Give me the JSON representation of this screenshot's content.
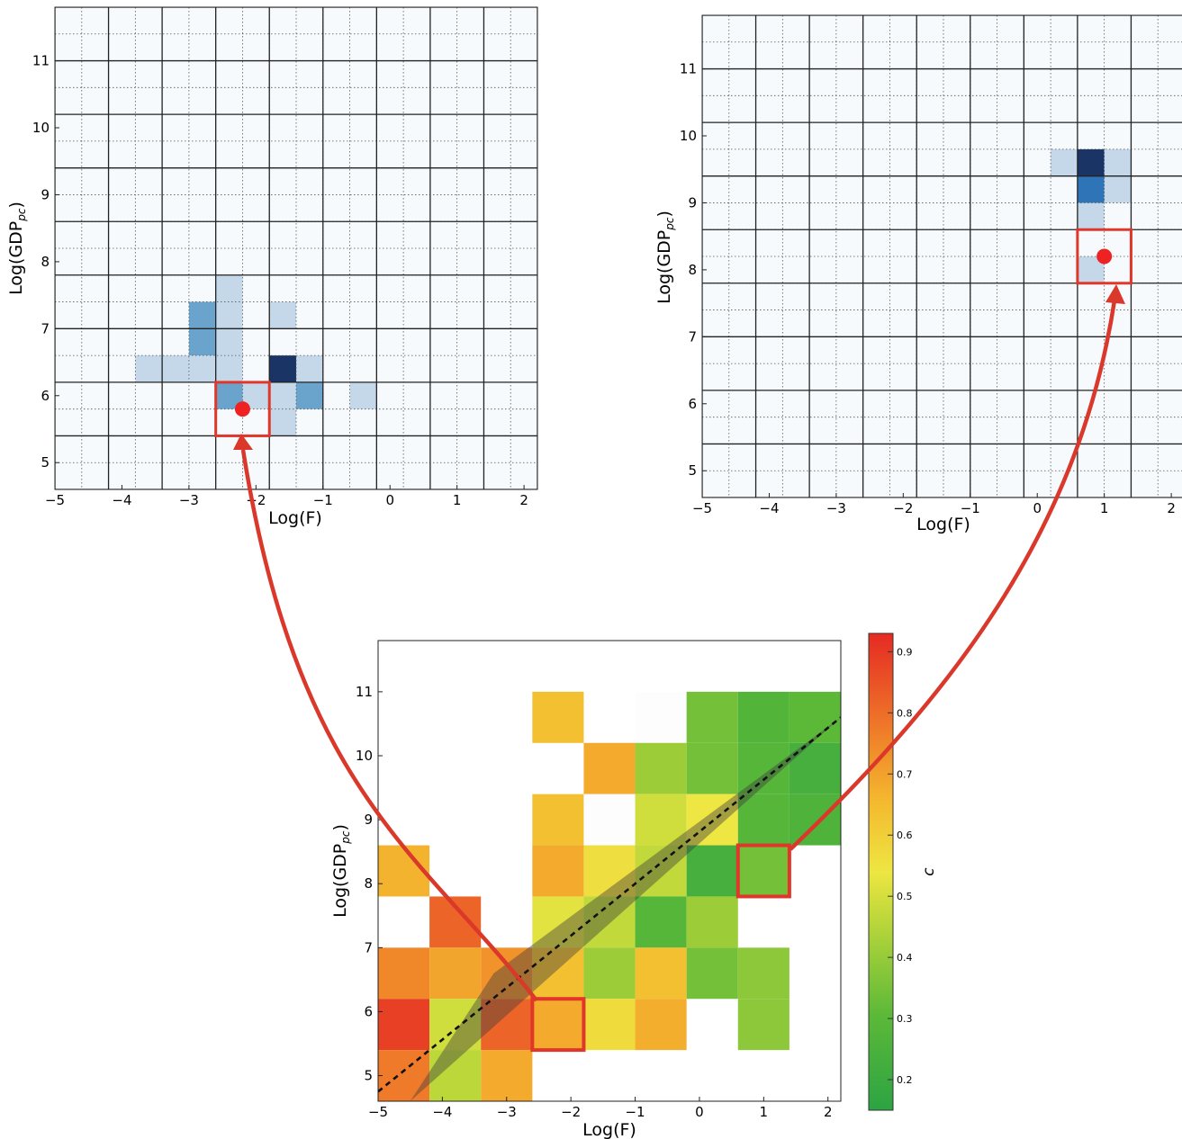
{
  "chart_data": [
    {
      "id": "left_panel",
      "type": "heatmap",
      "colormap": "blues",
      "xlabel": "Log(F)",
      "ylabel": "Log(GDP",
      "ylabel_sub": "pc",
      "ylabel_close": ")",
      "xlim": [
        -5,
        2.2
      ],
      "ylim": [
        4.6,
        11.8
      ],
      "xticks": [
        "−5",
        "−4",
        "−3",
        "−2",
        "−1",
        "0",
        "1",
        "2"
      ],
      "xtick_values": [
        -5,
        -4,
        -3,
        -2,
        -1,
        0,
        1,
        2
      ],
      "yticks": [
        "5",
        "6",
        "7",
        "8",
        "9",
        "10",
        "11"
      ],
      "ytick_values": [
        5,
        6,
        7,
        8,
        9,
        10,
        11
      ],
      "coarse_grid_x": [
        -5,
        -4.2,
        -3.4,
        -2.6,
        -1.8,
        -1.0,
        -0.2,
        0.6,
        1.4,
        2.2
      ],
      "coarse_grid_y": [
        4.6,
        5.4,
        6.2,
        7.0,
        7.8,
        8.6,
        9.4,
        10.2,
        11.0,
        11.8
      ],
      "fine_step": 0.4,
      "cells": [
        {
          "x": [
            -2.6,
            -2.2
          ],
          "y": [
            7.4,
            7.8
          ],
          "level": 0.25
        },
        {
          "x": [
            -2.6,
            -2.2
          ],
          "y": [
            7.0,
            7.4
          ],
          "level": 0.25
        },
        {
          "x": [
            -3.0,
            -2.6
          ],
          "y": [
            7.0,
            7.4
          ],
          "level": 0.55
        },
        {
          "x": [
            -1.8,
            -1.4
          ],
          "y": [
            7.0,
            7.4
          ],
          "level": 0.25
        },
        {
          "x": [
            -3.0,
            -2.6
          ],
          "y": [
            6.6,
            7.0
          ],
          "level": 0.55
        },
        {
          "x": [
            -2.6,
            -2.2
          ],
          "y": [
            6.6,
            7.0
          ],
          "level": 0.25
        },
        {
          "x": [
            -3.8,
            -3.4
          ],
          "y": [
            6.2,
            6.6
          ],
          "level": 0.25
        },
        {
          "x": [
            -3.4,
            -3.0
          ],
          "y": [
            6.2,
            6.6
          ],
          "level": 0.25
        },
        {
          "x": [
            -3.0,
            -2.6
          ],
          "y": [
            6.2,
            6.6
          ],
          "level": 0.25
        },
        {
          "x": [
            -2.6,
            -2.2
          ],
          "y": [
            6.2,
            6.6
          ],
          "level": 0.25
        },
        {
          "x": [
            -1.8,
            -1.4
          ],
          "y": [
            6.2,
            6.6
          ],
          "level": 1.0
        },
        {
          "x": [
            -1.4,
            -1.0
          ],
          "y": [
            6.2,
            6.6
          ],
          "level": 0.25
        },
        {
          "x": [
            -2.6,
            -2.2
          ],
          "y": [
            5.8,
            6.2
          ],
          "level": 0.55
        },
        {
          "x": [
            -2.2,
            -1.8
          ],
          "y": [
            5.8,
            6.2
          ],
          "level": 0.25
        },
        {
          "x": [
            -1.8,
            -1.4
          ],
          "y": [
            5.8,
            6.2
          ],
          "level": 0.25
        },
        {
          "x": [
            -1.4,
            -1.0
          ],
          "y": [
            5.8,
            6.2
          ],
          "level": 0.55
        },
        {
          "x": [
            -0.6,
            -0.2
          ],
          "y": [
            5.8,
            6.2
          ],
          "level": 0.25
        },
        {
          "x": [
            -1.8,
            -1.4
          ],
          "y": [
            5.4,
            5.8
          ],
          "level": 0.25
        }
      ],
      "highlight_box": {
        "x": [
          -2.6,
          -1.8
        ],
        "y": [
          5.4,
          6.2
        ]
      },
      "marker": {
        "x": -2.2,
        "y": 5.8
      }
    },
    {
      "id": "right_panel",
      "type": "heatmap",
      "colormap": "blues",
      "xlabel": "Log(F)",
      "ylabel": "Log(GDP",
      "ylabel_sub": "pc",
      "ylabel_close": ")",
      "xlim": [
        -5,
        2.2
      ],
      "ylim": [
        4.6,
        11.8
      ],
      "xticks": [
        "−5",
        "−4",
        "−3",
        "−2",
        "−1",
        "0",
        "1",
        "2"
      ],
      "xtick_values": [
        -5,
        -4,
        -3,
        -2,
        -1,
        0,
        1,
        2
      ],
      "yticks": [
        "5",
        "6",
        "7",
        "8",
        "9",
        "10",
        "11"
      ],
      "ytick_values": [
        5,
        6,
        7,
        8,
        9,
        10,
        11
      ],
      "coarse_grid_x": [
        -5,
        -4.2,
        -3.4,
        -2.6,
        -1.8,
        -1.0,
        -0.2,
        0.6,
        1.4,
        2.2
      ],
      "coarse_grid_y": [
        4.6,
        5.4,
        6.2,
        7.0,
        7.8,
        8.6,
        9.4,
        10.2,
        11.0,
        11.8
      ],
      "fine_step": 0.4,
      "cells": [
        {
          "x": [
            0.2,
            0.6
          ],
          "y": [
            9.4,
            9.8
          ],
          "level": 0.15
        },
        {
          "x": [
            0.6,
            1.0
          ],
          "y": [
            9.4,
            9.8
          ],
          "level": 1.0
        },
        {
          "x": [
            1.0,
            1.4
          ],
          "y": [
            9.4,
            9.8
          ],
          "level": 0.15
        },
        {
          "x": [
            0.6,
            1.0
          ],
          "y": [
            9.0,
            9.4
          ],
          "level": 0.7
        },
        {
          "x": [
            1.0,
            1.4
          ],
          "y": [
            9.0,
            9.4
          ],
          "level": 0.15
        },
        {
          "x": [
            0.6,
            1.0
          ],
          "y": [
            8.6,
            9.0
          ],
          "level": 0.15
        },
        {
          "x": [
            0.6,
            1.0
          ],
          "y": [
            7.8,
            8.2
          ],
          "level": 0.25
        }
      ],
      "highlight_box": {
        "x": [
          0.6,
          1.4
        ],
        "y": [
          7.8,
          8.6
        ]
      },
      "marker": {
        "x": 1.0,
        "y": 8.2
      }
    },
    {
      "id": "main_panel",
      "type": "heatmap",
      "colormap": "green-yellow-red",
      "xlabel": "Log(F)",
      "ylabel": "Log(GDP",
      "ylabel_sub": "pc",
      "ylabel_close": ")",
      "xlim": [
        -5,
        2.2
      ],
      "ylim": [
        4.6,
        11.8
      ],
      "xticks": [
        "−5",
        "−4",
        "−3",
        "−2",
        "−1",
        "0",
        "1",
        "2"
      ],
      "xtick_values": [
        -5,
        -4,
        -3,
        -2,
        -1,
        0,
        1,
        2
      ],
      "yticks": [
        "5",
        "6",
        "7",
        "8",
        "9",
        "10",
        "11"
      ],
      "ytick_values": [
        5,
        6,
        7,
        8,
        9,
        10,
        11
      ],
      "bin_size": 0.8,
      "colorbar": {
        "label": "c",
        "range": [
          0.15,
          0.93
        ],
        "ticks": [
          "0.2",
          "0.3",
          "0.4",
          "0.5",
          "0.6",
          "0.7",
          "0.8",
          "0.9"
        ],
        "tick_values": [
          0.2,
          0.3,
          0.4,
          0.5,
          0.6,
          0.7,
          0.8,
          0.9
        ]
      },
      "cells": [
        {
          "x": -2.6,
          "y": 10.2,
          "c": 0.6
        },
        {
          "x": -1.0,
          "y": 10.2,
          "c": 0.98,
          "white": true
        },
        {
          "x": -0.2,
          "y": 10.2,
          "c": 0.33
        },
        {
          "x": 0.6,
          "y": 10.2,
          "c": 0.27
        },
        {
          "x": 1.4,
          "y": 10.2,
          "c": 0.3
        },
        {
          "x": -1.8,
          "y": 9.4,
          "c": 0.65
        },
        {
          "x": -1.0,
          "y": 9.4,
          "c": 0.38
        },
        {
          "x": -0.2,
          "y": 9.4,
          "c": 0.33
        },
        {
          "x": 0.6,
          "y": 9.4,
          "c": 0.28
        },
        {
          "x": 1.4,
          "y": 9.4,
          "c": 0.23
        },
        {
          "x": -2.6,
          "y": 8.6,
          "c": 0.6
        },
        {
          "x": -1.8,
          "y": 8.6,
          "c": 0.98,
          "white": true
        },
        {
          "x": -1.0,
          "y": 8.6,
          "c": 0.45
        },
        {
          "x": -0.2,
          "y": 8.6,
          "c": 0.5
        },
        {
          "x": 0.6,
          "y": 8.6,
          "c": 0.28
        },
        {
          "x": 1.4,
          "y": 8.6,
          "c": 0.26
        },
        {
          "x": -5.0,
          "y": 7.8,
          "c": 0.63
        },
        {
          "x": -2.6,
          "y": 7.8,
          "c": 0.65
        },
        {
          "x": -1.8,
          "y": 7.8,
          "c": 0.52
        },
        {
          "x": -1.0,
          "y": 7.8,
          "c": 0.43
        },
        {
          "x": -0.2,
          "y": 7.8,
          "c": 0.23
        },
        {
          "x": 0.6,
          "y": 7.8,
          "c": 0.33
        },
        {
          "x": -4.2,
          "y": 7.0,
          "c": 0.8
        },
        {
          "x": -2.6,
          "y": 7.0,
          "c": 0.48
        },
        {
          "x": -1.8,
          "y": 7.0,
          "c": 0.43
        },
        {
          "x": -1.0,
          "y": 7.0,
          "c": 0.28
        },
        {
          "x": -0.2,
          "y": 7.0,
          "c": 0.38
        },
        {
          "x": -5.0,
          "y": 6.2,
          "c": 0.72
        },
        {
          "x": -4.2,
          "y": 6.2,
          "c": 0.66
        },
        {
          "x": -3.4,
          "y": 6.2,
          "c": 0.7
        },
        {
          "x": -2.6,
          "y": 6.2,
          "c": 0.6
        },
        {
          "x": -1.8,
          "y": 6.2,
          "c": 0.38
        },
        {
          "x": -1.0,
          "y": 6.2,
          "c": 0.6
        },
        {
          "x": -0.2,
          "y": 6.2,
          "c": 0.33
        },
        {
          "x": 0.6,
          "y": 6.2,
          "c": 0.36
        },
        {
          "x": -5.0,
          "y": 5.4,
          "c": 0.88
        },
        {
          "x": -4.2,
          "y": 5.4,
          "c": 0.45
        },
        {
          "x": -3.4,
          "y": 5.4,
          "c": 0.8
        },
        {
          "x": -2.6,
          "y": 5.4,
          "c": 0.65
        },
        {
          "x": -1.8,
          "y": 5.4,
          "c": 0.53
        },
        {
          "x": -1.0,
          "y": 5.4,
          "c": 0.64
        },
        {
          "x": 0.6,
          "y": 5.4,
          "c": 0.36
        },
        {
          "x": -5.0,
          "y": 4.6,
          "c": 0.75
        },
        {
          "x": -4.2,
          "y": 4.6,
          "c": 0.42
        },
        {
          "x": -3.4,
          "y": 4.6,
          "c": 0.65
        }
      ],
      "fit_line": {
        "x": [
          -5.0,
          2.2
        ],
        "y": [
          4.75,
          10.6
        ]
      },
      "confidence_band": {
        "upper": [
          [
            -3.2,
            6.6
          ],
          [
            2.2,
            10.6
          ]
        ],
        "lower": [
          [
            -4.5,
            4.6
          ],
          [
            2.2,
            10.6
          ]
        ]
      },
      "highlight_boxes": [
        {
          "x": [
            -2.6,
            -1.8
          ],
          "y": [
            5.4,
            6.2
          ]
        },
        {
          "x": [
            0.6,
            1.4
          ],
          "y": [
            7.8,
            8.6
          ]
        }
      ]
    }
  ],
  "colors": {
    "highlight": "#e0372a",
    "marker": "#ee2222",
    "arrow": "#d9382b",
    "blues_light": "#c5d8ea",
    "blues_mid": "#6aa3cc",
    "blues_strong": "#2e74b6",
    "blues_dark": "#1a3466",
    "empty_cell": "#f7fafd",
    "grid_coarse": "#222222",
    "grid_fine": "#555555"
  }
}
